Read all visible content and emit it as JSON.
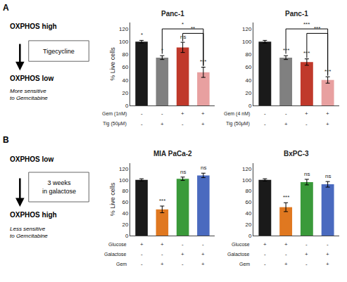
{
  "panels": [
    {
      "label": "A",
      "line1": "OXPHOS high",
      "box_text": "Tigecycline",
      "line2": "OXPHOS low",
      "italic_text": "More sensitive\nto Gemcitabine"
    },
    {
      "label": "B",
      "line1": "OXPHOS low",
      "box_text": "3 weeks\nin galactose",
      "line2": "OXPHOS high",
      "italic_text": "Less sensitive\nto Gemcitabine"
    }
  ],
  "chart_data": [
    {
      "type": "bar",
      "title": "Panc-1",
      "ylabel": "% Live cells",
      "categories": [
        null,
        null,
        null,
        null
      ],
      "values": [
        100,
        75,
        91,
        52
      ],
      "errors": [
        2,
        3,
        8,
        8
      ],
      "colors": [
        "#1a1a1a",
        "#808080",
        "#c0392b",
        "#e8a0a0"
      ],
      "ylim": [
        0,
        130
      ],
      "yticks": [
        0,
        20,
        40,
        60,
        80,
        100,
        120
      ],
      "grid": false,
      "tick_labels": "y",
      "significance": [
        "*",
        "*",
        "ns",
        "***"
      ],
      "brackets": [
        {
          "x1": 1,
          "x2": 3,
          "y": 120,
          "label": "*"
        },
        {
          "x1": 2,
          "x2": 3,
          "y": 113,
          "label": "**"
        }
      ],
      "x_rows": [
        {
          "label": "Gem (1nM)",
          "values": [
            "-",
            "-",
            "+",
            "+"
          ]
        },
        {
          "label": "Tig (50μM)",
          "values": [
            "-",
            "+",
            "-",
            "+"
          ]
        }
      ]
    },
    {
      "type": "bar",
      "title": "Panc-1",
      "categories": [
        null,
        null,
        null,
        null
      ],
      "values": [
        100,
        75,
        68,
        40
      ],
      "errors": [
        2,
        3,
        5,
        5
      ],
      "colors": [
        "#1a1a1a",
        "#808080",
        "#c0392b",
        "#e8a0a0"
      ],
      "ylim": [
        0,
        130
      ],
      "yticks": [
        0,
        20,
        40,
        60,
        80,
        100,
        120
      ],
      "grid": false,
      "tick_labels": "y",
      "significance": [
        null,
        "***",
        "***",
        "***"
      ],
      "brackets": [
        {
          "x1": 1,
          "x2": 3,
          "y": 120,
          "label": "***"
        },
        {
          "x1": 2,
          "x2": 3,
          "y": 113,
          "label": "***"
        }
      ],
      "x_rows": [
        {
          "label": "Gem (4 nM)",
          "values": [
            "-",
            "-",
            "+",
            "+"
          ]
        },
        {
          "label": "Tig (50μM)",
          "values": [
            "-",
            "+",
            "-",
            "+"
          ]
        }
      ]
    },
    {
      "type": "bar",
      "title": "MIA PaCa-2",
      "ylabel": "% Live cells",
      "categories": [
        null,
        null,
        null,
        null
      ],
      "values": [
        100,
        47,
        102,
        108
      ],
      "errors": [
        2,
        6,
        3,
        4
      ],
      "colors": [
        "#1a1a1a",
        "#e07820",
        "#3a9a3a",
        "#4a6abf"
      ],
      "ylim": [
        0,
        130
      ],
      "yticks": [
        0,
        20,
        40,
        60,
        80,
        100,
        120
      ],
      "grid": false,
      "tick_labels": "y",
      "significance": [
        null,
        "***",
        "ns",
        "ns"
      ],
      "x_rows": [
        {
          "label": "Glucose",
          "values": [
            "+",
            "+",
            "-",
            "-"
          ]
        },
        {
          "label": "Galactose",
          "values": [
            "-",
            "-",
            "+",
            "+"
          ]
        },
        {
          "label": "Gem",
          "values": [
            "-",
            "+",
            "-",
            "+"
          ]
        }
      ]
    },
    {
      "type": "bar",
      "title": "BxPC-3",
      "categories": [
        null,
        null,
        null,
        null
      ],
      "values": [
        100,
        51,
        96,
        92
      ],
      "errors": [
        2,
        8,
        5,
        5
      ],
      "colors": [
        "#1a1a1a",
        "#e07820",
        "#3a9a3a",
        "#4a6abf"
      ],
      "ylim": [
        0,
        130
      ],
      "yticks": [
        0,
        20,
        40,
        60,
        80,
        100,
        120
      ],
      "grid": false,
      "tick_labels": "y",
      "significance": [
        null,
        "***",
        "ns",
        "ns"
      ],
      "x_rows": [
        {
          "label": "Glucose",
          "values": [
            "+",
            "+",
            "-",
            "-"
          ]
        },
        {
          "label": "Galactose",
          "values": [
            "-",
            "-",
            "+",
            "+"
          ]
        },
        {
          "label": "Gem",
          "values": [
            "-",
            "+",
            "-",
            "+"
          ]
        }
      ]
    }
  ]
}
